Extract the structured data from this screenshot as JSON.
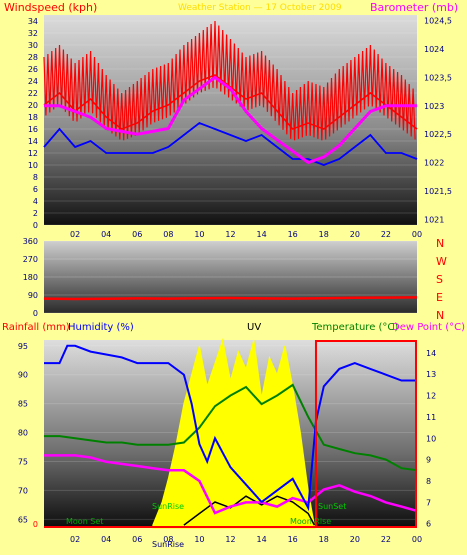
{
  "header": {
    "left_label": "Windspeed (kph)",
    "center_label": "Weather Station — 17 October 2009",
    "right_label": "Barometer (mb)"
  },
  "colors": {
    "background": "#ffff99",
    "wind": "#ff0000",
    "gust_band": "#0000ff",
    "barometer": "#ff00ff",
    "humidity": "#0000ff",
    "temperature": "#008000",
    "dewpoint": "#ff00ff",
    "uv": "#ffff00",
    "solar": "#000000",
    "highlight_box": "#ff0000",
    "axis_text": "#000080",
    "label_text": "#ff0000"
  },
  "chart_data": [
    {
      "type": "line",
      "name": "wind-baro",
      "x_ticks": [
        "02",
        "04",
        "06",
        "08",
        "10",
        "12",
        "14",
        "16",
        "18",
        "20",
        "22",
        "00"
      ],
      "x_range": [
        1,
        25
      ],
      "left_axis": {
        "label": "Windspeed (kph)",
        "range": [
          0,
          35
        ],
        "ticks": [
          0,
          2,
          4,
          6,
          8,
          10,
          12,
          14,
          16,
          18,
          20,
          22,
          24,
          26,
          28,
          30,
          32,
          34
        ]
      },
      "right_axis": {
        "label": "Barometer (mb)",
        "range": [
          1020.9,
          1024.6
        ],
        "ticks": [
          "1021",
          "1021,5",
          "1022",
          "1022,5",
          "1023",
          "1023,5",
          "1024",
          "1024,5"
        ]
      },
      "series": [
        {
          "key": "gust",
          "axis": "left",
          "x": [
            1,
            2,
            3,
            4,
            5,
            6,
            7,
            8,
            9,
            10,
            11,
            12,
            13,
            14,
            15,
            16,
            17,
            18,
            19,
            20,
            21,
            22,
            23,
            24,
            25
          ],
          "values": [
            28,
            30,
            27,
            29,
            25,
            22,
            24,
            26,
            27,
            30,
            32,
            34,
            31,
            28,
            29,
            26,
            22,
            24,
            23,
            26,
            28,
            30,
            27,
            25,
            22
          ]
        },
        {
          "key": "avg_wind",
          "axis": "left",
          "x": [
            1,
            2,
            3,
            4,
            5,
            6,
            7,
            8,
            9,
            10,
            11,
            12,
            13,
            14,
            15,
            16,
            17,
            18,
            19,
            20,
            21,
            22,
            23,
            24,
            25
          ],
          "values": [
            20,
            22,
            19,
            21,
            18,
            16,
            17,
            19,
            20,
            22,
            24,
            25,
            23,
            21,
            22,
            19,
            16,
            17,
            16,
            18,
            20,
            22,
            20,
            18,
            16
          ]
        },
        {
          "key": "wind_low",
          "axis": "left",
          "x": [
            1,
            2,
            3,
            4,
            5,
            6,
            7,
            8,
            9,
            10,
            11,
            12,
            13,
            14,
            15,
            16,
            17,
            18,
            19,
            20,
            21,
            22,
            23,
            24,
            25
          ],
          "values": [
            13,
            16,
            13,
            14,
            12,
            12,
            12,
            12,
            13,
            15,
            17,
            16,
            15,
            14,
            15,
            13,
            11,
            11,
            10,
            11,
            13,
            15,
            12,
            12,
            11
          ]
        },
        {
          "key": "barometer",
          "axis": "right",
          "x": [
            1,
            2,
            3,
            4,
            5,
            6,
            7,
            8,
            9,
            10,
            11,
            12,
            13,
            14,
            15,
            16,
            17,
            18,
            19,
            20,
            21,
            22,
            23,
            24,
            25
          ],
          "values": [
            1023.0,
            1023.0,
            1022.9,
            1022.8,
            1022.6,
            1022.55,
            1022.5,
            1022.55,
            1022.6,
            1023.1,
            1023.3,
            1023.5,
            1023.3,
            1022.9,
            1022.6,
            1022.4,
            1022.2,
            1022.0,
            1022.1,
            1022.3,
            1022.6,
            1022.9,
            1023.0,
            1023.0,
            1023.0
          ]
        }
      ]
    },
    {
      "type": "line",
      "name": "wind-direction",
      "x_range": [
        1,
        25
      ],
      "y_axis": {
        "range": [
          0,
          360
        ],
        "ticks": [
          0,
          90,
          180,
          270,
          360
        ]
      },
      "compass": [
        "N",
        "W",
        "S",
        "E",
        "N"
      ],
      "series": [
        {
          "key": "direction",
          "x": [
            1,
            3,
            5,
            7,
            9,
            11,
            13,
            15,
            17,
            19,
            21,
            23,
            25
          ],
          "values": [
            72,
            70,
            71,
            73,
            72,
            74,
            75,
            73,
            72,
            74,
            76,
            77,
            78
          ]
        }
      ]
    },
    {
      "type": "line",
      "name": "humidity-temp-uv",
      "labels": {
        "rainfall": "Rainfall (mm)",
        "humidity": "Humidity (%)",
        "uv": "UV",
        "temperature": "Temperature (°C)",
        "dewpoint": "Dew Point (°C)"
      },
      "x_ticks": [
        "02",
        "04",
        "06",
        "08",
        "10",
        "12",
        "14",
        "16",
        "18",
        "20",
        "22",
        "00"
      ],
      "x_range": [
        1,
        25
      ],
      "left_axis": {
        "range": [
          63.5,
          96
        ],
        "ticks": [
          65,
          70,
          75,
          80,
          85,
          90,
          95
        ]
      },
      "right_axis": {
        "range": [
          5.8,
          14.6
        ],
        "ticks": [
          6,
          7,
          8,
          9,
          10,
          11,
          12,
          13,
          14
        ]
      },
      "annotations": {
        "moon_set": "Moon Set",
        "sunrise": "SunRise",
        "sunset": "SunSet",
        "moon_rise": "Moon Rise",
        "bottom_sunrise": "SunRise"
      },
      "series": [
        {
          "key": "humidity",
          "axis": "left",
          "x": [
            1,
            2,
            2.5,
            3,
            4,
            5,
            6,
            7,
            8,
            9,
            10,
            10.5,
            11,
            11.5,
            12,
            13,
            14,
            15,
            16,
            17,
            18,
            18.5,
            19,
            20,
            21,
            22,
            23,
            24,
            25
          ],
          "values": [
            92,
            92,
            95,
            95,
            94,
            93.5,
            93,
            92,
            92,
            92,
            90,
            85,
            78,
            75,
            79,
            74,
            71,
            68,
            70,
            72,
            67,
            82,
            88,
            91,
            92,
            91,
            90,
            89,
            89
          ]
        },
        {
          "key": "temperature",
          "axis": "right",
          "x": [
            1,
            2,
            3,
            4,
            5,
            6,
            7,
            8,
            9,
            10,
            11,
            12,
            13,
            14,
            15,
            16,
            17,
            18,
            19,
            20,
            21,
            22,
            23,
            24,
            25
          ],
          "values": [
            10.1,
            10.1,
            10.0,
            9.9,
            9.8,
            9.8,
            9.7,
            9.7,
            9.7,
            9.8,
            10.5,
            11.5,
            12.0,
            12.4,
            11.6,
            12.0,
            12.5,
            11.0,
            9.7,
            9.5,
            9.3,
            9.2,
            9.0,
            8.6,
            8.5
          ]
        },
        {
          "key": "dewpoint",
          "axis": "right",
          "x": [
            1,
            2,
            3,
            4,
            5,
            6,
            7,
            8,
            9,
            10,
            11,
            12,
            13,
            14,
            15,
            16,
            17,
            18,
            19,
            20,
            21,
            22,
            23,
            24,
            25
          ],
          "values": [
            9.2,
            9.2,
            9.2,
            9.1,
            8.9,
            8.8,
            8.7,
            8.6,
            8.5,
            8.5,
            8.0,
            6.5,
            6.8,
            7.0,
            7.0,
            6.8,
            7.2,
            7.0,
            7.6,
            7.8,
            7.5,
            7.3,
            7.0,
            6.8,
            6.6
          ]
        },
        {
          "key": "uv",
          "axis": "left",
          "x": [
            8,
            8.6,
            9,
            9.5,
            10,
            10.5,
            11,
            11.5,
            12,
            12.5,
            13,
            13.5,
            14,
            14.5,
            15,
            15.5,
            16,
            16.5,
            17,
            17.5,
            18,
            18.4
          ],
          "values": [
            64,
            68,
            72,
            78,
            85,
            90,
            95,
            88,
            92,
            96,
            89,
            94,
            91,
            96,
            86,
            93,
            90,
            95,
            88,
            80,
            70,
            64
          ]
        },
        {
          "key": "solar",
          "axis": "left",
          "x": [
            10,
            11,
            12,
            13,
            14,
            15,
            16,
            17,
            18,
            18.4
          ],
          "values": [
            64,
            66,
            68,
            67,
            69,
            67.5,
            69,
            68,
            66,
            64
          ]
        }
      ],
      "highlight_range": [
        18.5,
        25
      ]
    }
  ]
}
